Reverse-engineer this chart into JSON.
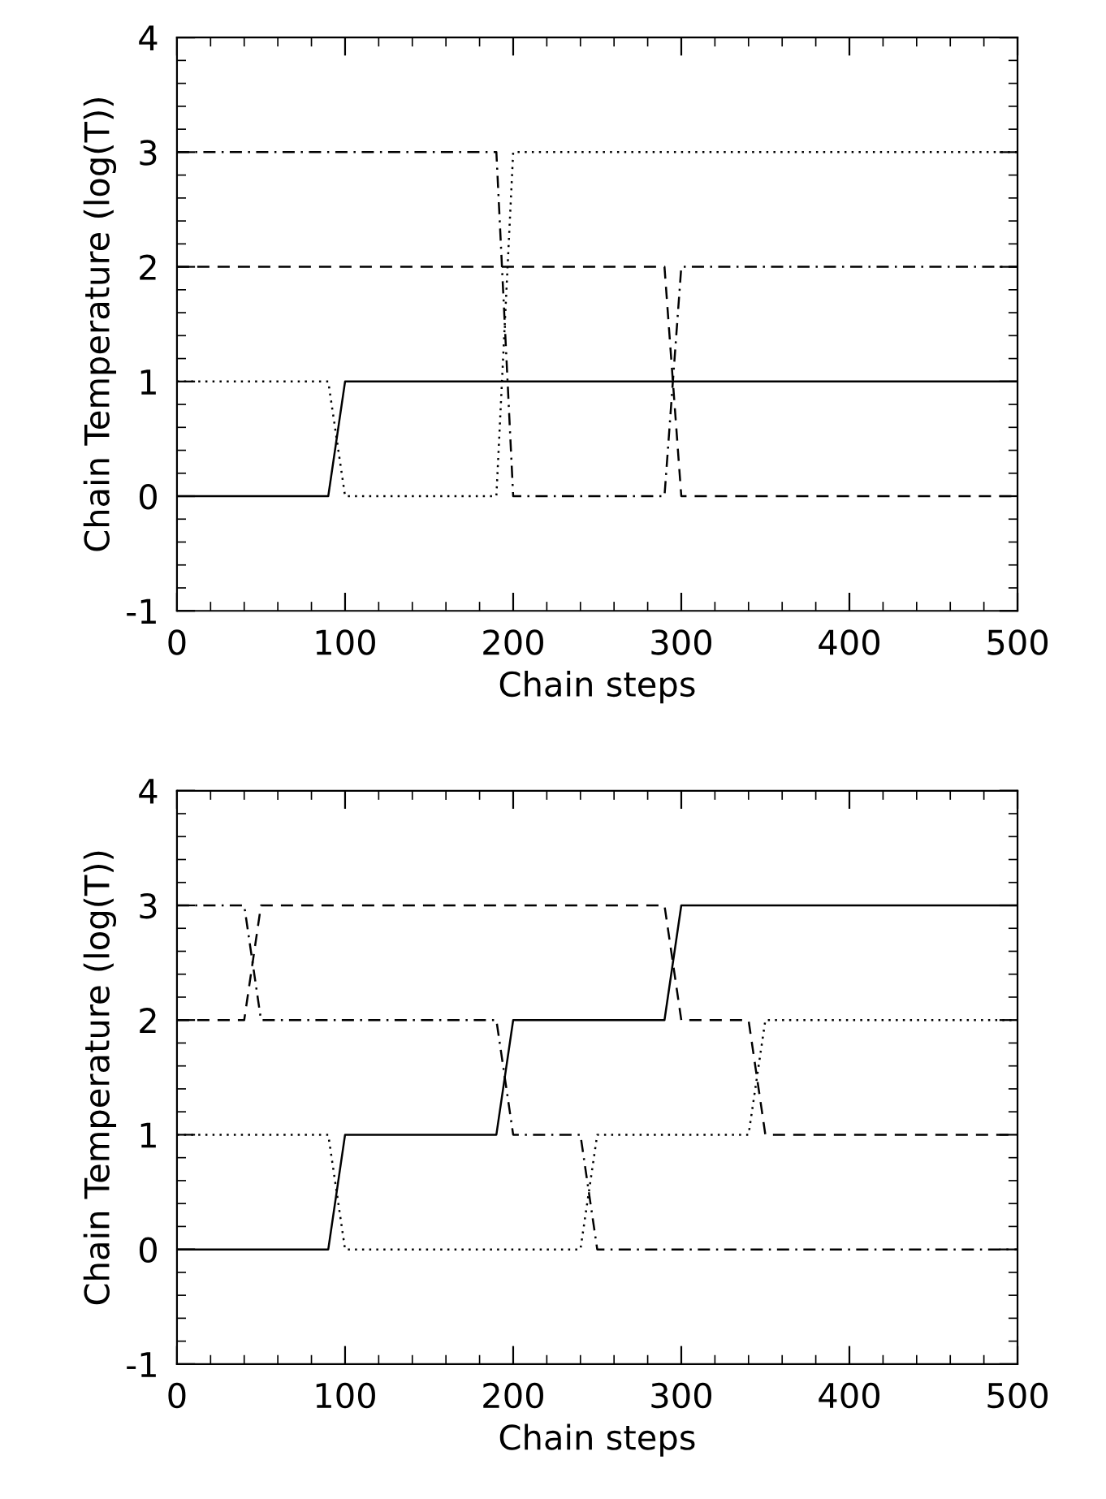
{
  "chart_data": [
    {
      "type": "line",
      "xlabel": "Chain steps",
      "ylabel": "Chain Temperature (log(T))",
      "xlim": [
        0,
        500
      ],
      "ylim": [
        -1,
        4
      ],
      "xticks": [
        0,
        100,
        200,
        300,
        400,
        500
      ],
      "yticks": [
        -1,
        0,
        1,
        2,
        3,
        4
      ],
      "grid": false,
      "legend": false,
      "series": [
        {
          "color": "#000000",
          "line_style": "solid",
          "x": [
            0,
            90,
            100,
            500
          ],
          "values": [
            0,
            0,
            1,
            1
          ]
        },
        {
          "color": "#000000",
          "line_style": "dotted",
          "x": [
            0,
            90,
            100,
            190,
            200,
            500
          ],
          "values": [
            1,
            1,
            0,
            0,
            3,
            3
          ]
        },
        {
          "color": "#000000",
          "line_style": "dashdot",
          "x": [
            0,
            190,
            200,
            290,
            300,
            500
          ],
          "values": [
            3,
            3,
            0,
            0,
            2,
            2
          ]
        },
        {
          "color": "#000000",
          "line_style": "dashed",
          "x": [
            0,
            290,
            300,
            500
          ],
          "values": [
            2,
            2,
            0,
            0
          ]
        }
      ]
    },
    {
      "type": "line",
      "xlabel": "Chain steps",
      "ylabel": "Chain Temperature (log(T))",
      "xlim": [
        0,
        500
      ],
      "ylim": [
        -1,
        4
      ],
      "xticks": [
        0,
        100,
        200,
        300,
        400,
        500
      ],
      "yticks": [
        -1,
        0,
        1,
        2,
        3,
        4
      ],
      "grid": false,
      "legend": false,
      "series": [
        {
          "color": "#000000",
          "line_style": "solid",
          "x": [
            0,
            90,
            100,
            190,
            200,
            290,
            300,
            500
          ],
          "values": [
            0,
            0,
            1,
            1,
            2,
            2,
            3,
            3
          ]
        },
        {
          "color": "#000000",
          "line_style": "dotted",
          "x": [
            0,
            90,
            100,
            240,
            250,
            340,
            350,
            500
          ],
          "values": [
            1,
            1,
            0,
            0,
            1,
            1,
            2,
            2
          ]
        },
        {
          "color": "#000000",
          "line_style": "dashed",
          "x": [
            0,
            40,
            50,
            290,
            300,
            340,
            350,
            500
          ],
          "values": [
            2,
            2,
            3,
            3,
            2,
            2,
            1,
            1
          ]
        },
        {
          "color": "#000000",
          "line_style": "dashdot",
          "x": [
            0,
            40,
            50,
            190,
            200,
            240,
            250,
            500
          ],
          "values": [
            3,
            3,
            2,
            2,
            1,
            1,
            0,
            0
          ]
        }
      ]
    }
  ]
}
